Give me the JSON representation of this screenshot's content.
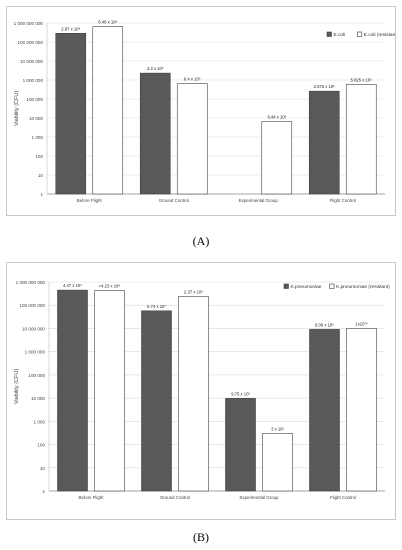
{
  "captions": [
    "(A)",
    "(B)"
  ],
  "colors": {
    "series1": "#595959",
    "series2": "#ffffff",
    "stroke": "#404040",
    "grid": "#d9d9d9"
  },
  "chart_data": [
    {
      "type": "bar",
      "scale": "log",
      "ylabel": "Viability (CFU)",
      "ylim": [
        1,
        1000000000
      ],
      "yticks": [
        1,
        10,
        100,
        1000,
        10000,
        100000,
        1000000,
        10000000,
        100000000,
        1000000000
      ],
      "ytick_labels": [
        "1",
        "10",
        "100",
        "1 000",
        "10 000",
        "100 000",
        "1 000 000",
        "10 000 000",
        "100 000 000",
        "1 000 000 000"
      ],
      "categories": [
        "Before Flight",
        "Ground Control",
        "Experimental Group",
        "Flight Control"
      ],
      "legend_position": "top-right",
      "series": [
        {
          "name": "E.coli",
          "values": [
            287000000,
            2300000,
            null,
            257500
          ],
          "labels": [
            "2.87 x 10⁸",
            "2.3 x 10⁶",
            "",
            "2.575 x 10⁵"
          ]
        },
        {
          "name": "E.coli (resistant)",
          "values": [
            646000000,
            640000,
            6440,
            582500
          ],
          "labels": [
            "6.46 x 10⁸",
            "6.4 x 10⁵",
            "6.44 x 10³",
            "5.825 x 10⁵"
          ]
        }
      ]
    },
    {
      "type": "bar",
      "scale": "log",
      "ylabel": "Viability (CFU)",
      "ylim": [
        1,
        1000000000
      ],
      "yticks": [
        1,
        10,
        100,
        1000,
        10000,
        100000,
        1000000,
        10000000,
        100000000,
        1000000000
      ],
      "ytick_labels": [
        "1",
        "10",
        "100",
        "1 000",
        "10 000",
        "100 000",
        "1 000 000",
        "10 000 000",
        "100 000 000",
        "1 000 000 000"
      ],
      "categories": [
        "Before Flight",
        "Ground Control",
        "Experimental Group",
        "Flight Control"
      ],
      "legend_position": "top-right",
      "series": [
        {
          "name": "K.pneumoniae",
          "values": [
            447000000,
            57400000,
            9750,
            9080000
          ],
          "labels": [
            "4.47 x 10⁸",
            "5.74 x 10⁷",
            "9.75 x 10³",
            "9.08 x 10⁶"
          ]
        },
        {
          "name": "K.pneumoniae (resistant)",
          "values": [
            423000000,
            237000000,
            300,
            10000000
          ],
          "labels": [
            "≈4.23 x 10⁸",
            "2.37 x 10⁸",
            "3 x 10²",
            "1x10⁷*"
          ]
        }
      ]
    }
  ]
}
